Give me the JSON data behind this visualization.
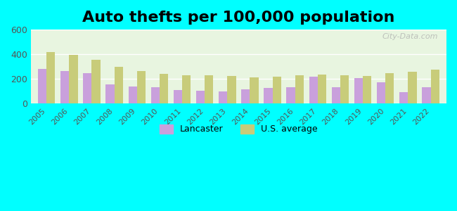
{
  "title": "Auto thefts per 100,000 population",
  "years": [
    2005,
    2006,
    2007,
    2008,
    2009,
    2010,
    2011,
    2012,
    2013,
    2014,
    2015,
    2016,
    2017,
    2018,
    2019,
    2020,
    2021,
    2022
  ],
  "lancaster": [
    280,
    265,
    245,
    155,
    140,
    135,
    108,
    105,
    98,
    115,
    125,
    135,
    220,
    135,
    205,
    170,
    90,
    135
  ],
  "us_average": [
    415,
    395,
    355,
    300,
    262,
    240,
    230,
    228,
    222,
    212,
    218,
    232,
    235,
    230,
    225,
    245,
    258,
    275
  ],
  "lancaster_color": "#c9a0dc",
  "us_avg_color": "#c8cc7a",
  "bg_color_top": "#e8f5e0",
  "bg_color_bottom": "#d0f0e0",
  "outer_bg": "#00ffff",
  "ylim": [
    0,
    600
  ],
  "yticks": [
    0,
    200,
    400,
    600
  ],
  "legend_lancaster": "Lancaster",
  "legend_us": "U.S. average",
  "title_fontsize": 16,
  "bar_width": 0.38
}
